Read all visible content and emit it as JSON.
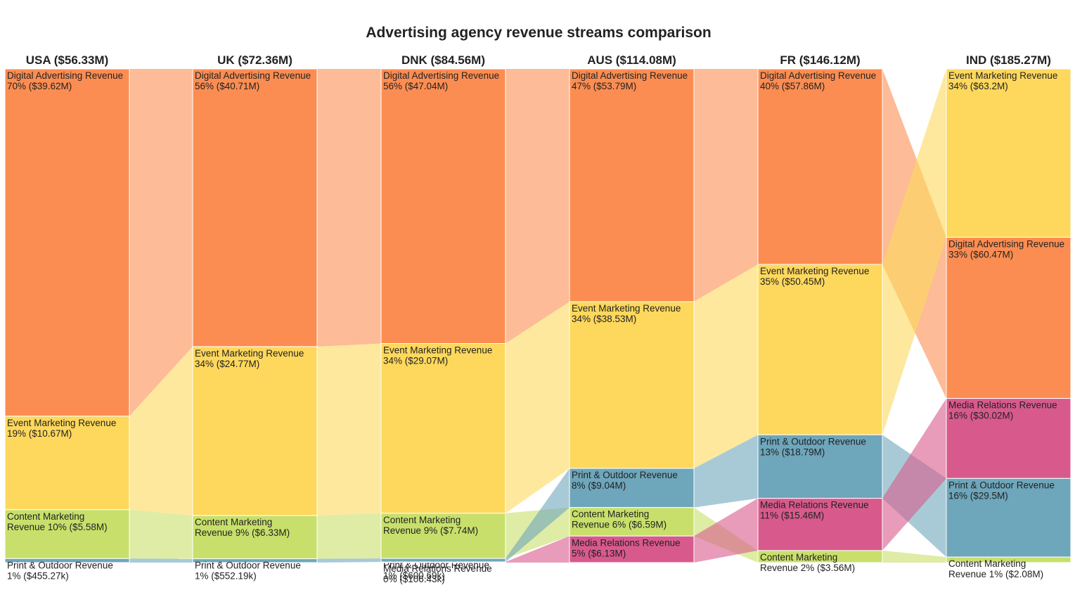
{
  "chart_data": {
    "type": "ribbon",
    "title": "Advertising agency revenue streams comparison",
    "colors": {
      "Digital Advertising Revenue": "#fc8d52",
      "Event Marketing Revenue": "#fed85c",
      "Content Marketing Revenue": "#c8e06b",
      "Print & Outdoor Revenue": "#6ea6bb",
      "Media Relations Revenue": "#d85a8c"
    },
    "columns": [
      {
        "label": "USA ($56.33M)",
        "segments": [
          {
            "category": "Digital Advertising Revenue",
            "value": 39.62,
            "line1": "Digital Advertising Revenue",
            "line2": "70% ($39.62M)"
          },
          {
            "category": "Event Marketing Revenue",
            "value": 10.67,
            "line1": "Event Marketing Revenue",
            "line2": "19% ($10.67M)"
          },
          {
            "category": "Content Marketing Revenue",
            "value": 5.58,
            "line1": "Content Marketing",
            "line2": "Revenue 10% ($5.58M)"
          },
          {
            "category": "Print & Outdoor Revenue",
            "value": 0.45527,
            "line1": "Print & Outdoor Revenue",
            "line2": "1% ($455.27k)"
          }
        ]
      },
      {
        "label": "UK ($72.36M)",
        "segments": [
          {
            "category": "Digital Advertising Revenue",
            "value": 40.71,
            "line1": "Digital Advertising Revenue",
            "line2": "56% ($40.71M)"
          },
          {
            "category": "Event Marketing Revenue",
            "value": 24.77,
            "line1": "Event Marketing Revenue",
            "line2": "34% ($24.77M)"
          },
          {
            "category": "Content Marketing Revenue",
            "value": 6.33,
            "line1": "Content Marketing",
            "line2": "Revenue 9% ($6.33M)"
          },
          {
            "category": "Print & Outdoor Revenue",
            "value": 0.55219,
            "line1": "Print & Outdoor Revenue",
            "line2": "1% ($552.19k)"
          }
        ]
      },
      {
        "label": "DNK ($84.56M)",
        "segments": [
          {
            "category": "Digital Advertising Revenue",
            "value": 47.04,
            "line1": "Digital Advertising Revenue",
            "line2": "56% ($47.04M)"
          },
          {
            "category": "Event Marketing Revenue",
            "value": 29.07,
            "line1": "Event Marketing Revenue",
            "line2": "34% ($29.07M)"
          },
          {
            "category": "Content Marketing Revenue",
            "value": 7.74,
            "line1": "Content Marketing",
            "line2": "Revenue 9% ($7.74M)"
          },
          {
            "category": "Print & Outdoor Revenue",
            "value": 0.60069,
            "line1": "Print & Outdoor Revenue",
            "line2": "1% ($600.69k)"
          },
          {
            "category": "Media Relations Revenue",
            "value": 0.10643,
            "line1": "Media Relations Revenue",
            "line2": "0% ($106.43k)"
          }
        ]
      },
      {
        "label": "AUS ($114.08M)",
        "segments": [
          {
            "category": "Digital Advertising Revenue",
            "value": 53.79,
            "line1": "Digital Advertising Revenue",
            "line2": "47% ($53.79M)"
          },
          {
            "category": "Event Marketing Revenue",
            "value": 38.53,
            "line1": "Event Marketing Revenue",
            "line2": "34% ($38.53M)"
          },
          {
            "category": "Print & Outdoor Revenue",
            "value": 9.04,
            "line1": "Print & Outdoor Revenue",
            "line2": "8% ($9.04M)"
          },
          {
            "category": "Content Marketing Revenue",
            "value": 6.59,
            "line1": "Content Marketing",
            "line2": "Revenue 6% ($6.59M)"
          },
          {
            "category": "Media Relations Revenue",
            "value": 6.13,
            "line1": "Media Relations Revenue",
            "line2": "5% ($6.13M)"
          }
        ]
      },
      {
        "label": "FR ($146.12M)",
        "segments": [
          {
            "category": "Digital Advertising Revenue",
            "value": 57.86,
            "line1": "Digital Advertising Revenue",
            "line2": "40% ($57.86M)"
          },
          {
            "category": "Event Marketing Revenue",
            "value": 50.45,
            "line1": "Event Marketing Revenue",
            "line2": "35% ($50.45M)"
          },
          {
            "category": "Print & Outdoor Revenue",
            "value": 18.79,
            "line1": "Print & Outdoor Revenue",
            "line2": "13% ($18.79M)"
          },
          {
            "category": "Media Relations Revenue",
            "value": 15.46,
            "line1": "Media Relations Revenue",
            "line2": "11% ($15.46M)"
          },
          {
            "category": "Content Marketing Revenue",
            "value": 3.56,
            "line1": "Content Marketing",
            "line2": "Revenue 2% ($3.56M)"
          }
        ]
      },
      {
        "label": "IND ($185.27M)",
        "segments": [
          {
            "category": "Event Marketing Revenue",
            "value": 63.2,
            "line1": "Event Marketing Revenue",
            "line2": "34% ($63.2M)"
          },
          {
            "category": "Digital Advertising Revenue",
            "value": 60.47,
            "line1": "Digital Advertising Revenue",
            "line2": "33% ($60.47M)"
          },
          {
            "category": "Media Relations Revenue",
            "value": 30.02,
            "line1": "Media Relations Revenue",
            "line2": "16% ($30.02M)"
          },
          {
            "category": "Print & Outdoor Revenue",
            "value": 29.5,
            "line1": "Print & Outdoor Revenue",
            "line2": "16% ($29.5M)"
          },
          {
            "category": "Content Marketing Revenue",
            "value": 2.08,
            "line1": "Content Marketing",
            "line2": "Revenue 1% ($2.08M)"
          }
        ]
      }
    ]
  }
}
